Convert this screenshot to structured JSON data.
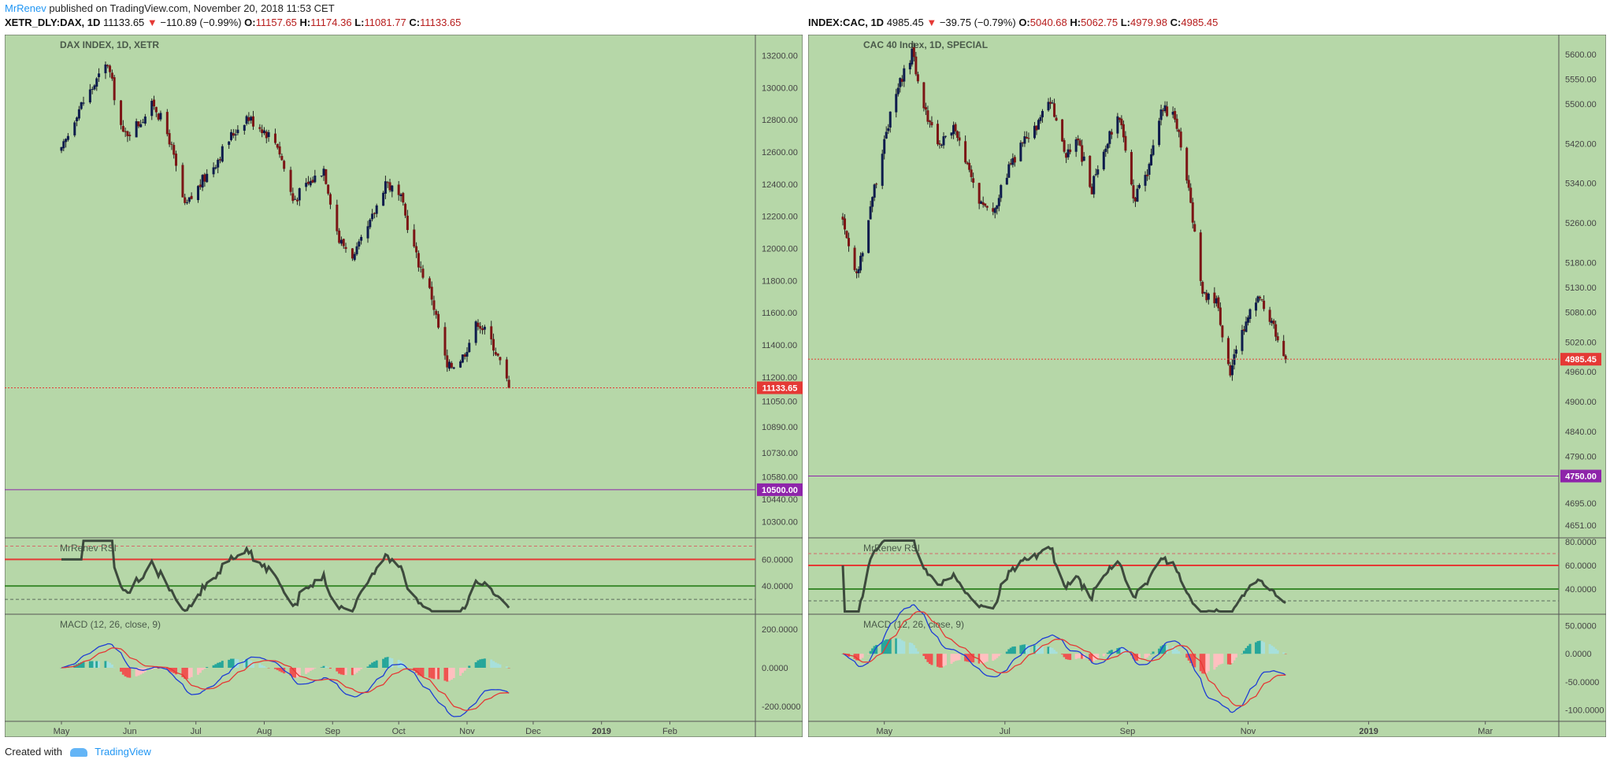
{
  "header": {
    "author": "MrRenev",
    "published": " published on TradingView.com, November 20, 2018 11:53 CET"
  },
  "footer": {
    "created_with": "Created with",
    "brand": "TradingView"
  },
  "panels": [
    {
      "id": "dax",
      "symbol": "XETR_DLY:DAX, 1D",
      "last": "11133.65",
      "change": "−110.89 (−0.99%)",
      "O": "11157.65",
      "H": "11174.36",
      "L": "11081.77",
      "C": "11133.65",
      "title": "DAX INDEX, 1D, XETR",
      "price_ticks": [
        "13200.00",
        "13000.00",
        "12800.00",
        "12600.00",
        "12400.00",
        "12200.00",
        "12000.00",
        "11800.00",
        "11600.00",
        "11400.00",
        "11200.00",
        "11050.00",
        "10890.00",
        "10730.00",
        "10580.00",
        "10440.00",
        "10300.00"
      ],
      "last_price_label": "11133.65",
      "support_label": "10500.00",
      "rsi_title": "MrRenev RSI",
      "rsi_ticks": [
        "60.0000",
        "40.0000"
      ],
      "macd_title": "MACD (12, 26, close, 9)",
      "macd_ticks": [
        "200.0000",
        "0.0000",
        "-200.0000"
      ],
      "time_labels": [
        "May",
        "Jun",
        "Jul",
        "Aug",
        "Sep",
        "Oct",
        "Nov",
        "Dec",
        "2019",
        "Feb"
      ]
    },
    {
      "id": "cac",
      "symbol": "INDEX:CAC, 1D",
      "last": "4985.45",
      "change": "−39.75 (−0.79%)",
      "O": "5040.68",
      "H": "5062.75",
      "L": "4979.98",
      "C": "4985.45",
      "title": "CAC 40 Index, 1D, SPECIAL",
      "price_ticks": [
        "5600.00",
        "5550.00",
        "5500.00",
        "5420.00",
        "5340.00",
        "5260.00",
        "5180.00",
        "5130.00",
        "5080.00",
        "5020.00",
        "4960.00",
        "4900.00",
        "4840.00",
        "4790.00",
        "4750.00",
        "4695.00",
        "4651.00"
      ],
      "last_price_label": "4985.45",
      "support_label": "4750.00",
      "rsi_title": "MrRenev RSI",
      "rsi_ticks": [
        "80.0000",
        "60.0000",
        "40.0000"
      ],
      "macd_title": "MACD (12, 26, close, 9)",
      "macd_ticks": [
        "50.0000",
        "0.0000",
        "-50.0000",
        "-100.0000"
      ],
      "time_labels": [
        "May",
        "Jul",
        "Sep",
        "Nov",
        "2019",
        "Mar"
      ]
    }
  ],
  "chart_data": [
    {
      "type": "candlestick",
      "title": "DAX INDEX, 1D, XETR",
      "x_range": [
        "2018-05-01",
        "2019-02-28"
      ],
      "close_series": [
        {
          "date": "2018-05-01",
          "value": 12600
        },
        {
          "date": "2018-05-08",
          "value": 12850
        },
        {
          "date": "2018-05-15",
          "value": 13000
        },
        {
          "date": "2018-05-22",
          "value": 13150
        },
        {
          "date": "2018-05-29",
          "value": 12700
        },
        {
          "date": "2018-06-05",
          "value": 12780
        },
        {
          "date": "2018-06-12",
          "value": 12900
        },
        {
          "date": "2018-06-19",
          "value": 12680
        },
        {
          "date": "2018-06-26",
          "value": 12250
        },
        {
          "date": "2018-07-03",
          "value": 12400
        },
        {
          "date": "2018-07-10",
          "value": 12540
        },
        {
          "date": "2018-07-17",
          "value": 12700
        },
        {
          "date": "2018-07-24",
          "value": 12820
        },
        {
          "date": "2018-07-31",
          "value": 12750
        },
        {
          "date": "2018-08-07",
          "value": 12650
        },
        {
          "date": "2018-08-14",
          "value": 12300
        },
        {
          "date": "2018-08-21",
          "value": 12400
        },
        {
          "date": "2018-08-28",
          "value": 12500
        },
        {
          "date": "2018-09-04",
          "value": 12050
        },
        {
          "date": "2018-09-11",
          "value": 11950
        },
        {
          "date": "2018-09-18",
          "value": 12150
        },
        {
          "date": "2018-09-25",
          "value": 12420
        },
        {
          "date": "2018-10-02",
          "value": 12300
        },
        {
          "date": "2018-10-09",
          "value": 11950
        },
        {
          "date": "2018-10-16",
          "value": 11700
        },
        {
          "date": "2018-10-23",
          "value": 11250
        },
        {
          "date": "2018-10-30",
          "value": 11330
        },
        {
          "date": "2018-11-06",
          "value": 11550
        },
        {
          "date": "2018-11-13",
          "value": 11400
        },
        {
          "date": "2018-11-20",
          "value": 11133.65
        }
      ],
      "horizontal_lines": [
        {
          "value": 11133.65,
          "label": "last price"
        },
        {
          "value": 10500.0,
          "label": "support"
        }
      ],
      "ylim": [
        10230,
        13300
      ],
      "indicators": [
        {
          "name": "MrRenev RSI",
          "levels": [
            70,
            60,
            40,
            30
          ],
          "ylim": [
            20,
            75
          ]
        },
        {
          "name": "MACD (12, 26, close, 9)",
          "ylim": [
            -260,
            260
          ]
        }
      ]
    },
    {
      "type": "candlestick",
      "title": "CAC 40 Index, 1D, SPECIAL",
      "x_range": [
        "2018-04-10",
        "2019-03-31"
      ],
      "close_series": [
        {
          "date": "2018-04-10",
          "value": 5270
        },
        {
          "date": "2018-04-17",
          "value": 5150
        },
        {
          "date": "2018-04-24",
          "value": 5290
        },
        {
          "date": "2018-05-01",
          "value": 5430
        },
        {
          "date": "2018-05-08",
          "value": 5530
        },
        {
          "date": "2018-05-15",
          "value": 5600
        },
        {
          "date": "2018-05-22",
          "value": 5480
        },
        {
          "date": "2018-05-29",
          "value": 5420
        },
        {
          "date": "2018-06-05",
          "value": 5450
        },
        {
          "date": "2018-06-12",
          "value": 5370
        },
        {
          "date": "2018-06-19",
          "value": 5300
        },
        {
          "date": "2018-06-26",
          "value": 5290
        },
        {
          "date": "2018-07-03",
          "value": 5370
        },
        {
          "date": "2018-07-10",
          "value": 5420
        },
        {
          "date": "2018-07-17",
          "value": 5450
        },
        {
          "date": "2018-07-24",
          "value": 5510
        },
        {
          "date": "2018-07-31",
          "value": 5400
        },
        {
          "date": "2018-08-07",
          "value": 5420
        },
        {
          "date": "2018-08-14",
          "value": 5330
        },
        {
          "date": "2018-08-21",
          "value": 5420
        },
        {
          "date": "2018-08-28",
          "value": 5480
        },
        {
          "date": "2018-09-04",
          "value": 5300
        },
        {
          "date": "2018-09-11",
          "value": 5360
        },
        {
          "date": "2018-09-18",
          "value": 5490
        },
        {
          "date": "2018-09-25",
          "value": 5480
        },
        {
          "date": "2018-10-02",
          "value": 5330
        },
        {
          "date": "2018-10-09",
          "value": 5120
        },
        {
          "date": "2018-10-16",
          "value": 5100
        },
        {
          "date": "2018-10-23",
          "value": 4960
        },
        {
          "date": "2018-10-30",
          "value": 5050
        },
        {
          "date": "2018-11-06",
          "value": 5110
        },
        {
          "date": "2018-11-13",
          "value": 5060
        },
        {
          "date": "2018-11-20",
          "value": 4985.45
        }
      ],
      "horizontal_lines": [
        {
          "value": 4985.45,
          "label": "last price"
        },
        {
          "value": 4750.0,
          "label": "support"
        }
      ],
      "ylim": [
        4635,
        5630
      ],
      "indicators": [
        {
          "name": "MrRenev RSI",
          "levels": [
            70,
            60,
            40,
            30
          ],
          "ylim": [
            20,
            82
          ]
        },
        {
          "name": "MACD (12, 26, close, 9)",
          "ylim": [
            -115,
            65
          ]
        }
      ]
    }
  ],
  "colors": {
    "background": "#b6d7a8",
    "up": "#0d1b4c",
    "down": "#7b1515",
    "price_line": "#e53935",
    "support": "#8e24aa",
    "rsi": "#3d4a3d",
    "rsi_upper": "#e53935",
    "rsi_lower": "#3c8a2e",
    "macd": "#1e3dd6",
    "signal": "#e53935",
    "hist_up": "#26a69a",
    "hist_down": "#ef5350"
  }
}
